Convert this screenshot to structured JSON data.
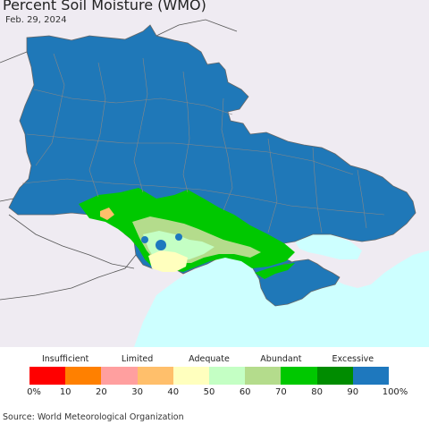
{
  "title": "Percent Soil Moisture (WMO)",
  "date": "Feb. 29, 2024",
  "source": "Source: World Meteorological Organization",
  "legend": {
    "categories": [
      {
        "label": "Insufficient",
        "value": 10
      },
      {
        "label": "Limited",
        "value": 30
      },
      {
        "label": "Adequate",
        "value": 50
      },
      {
        "label": "Abundant",
        "value": 70
      },
      {
        "label": "Excessive",
        "value": 90
      }
    ],
    "colors": [
      "#ff0000",
      "#ff8000",
      "#ff9f9f",
      "#ffbf6b",
      "#ffffbe",
      "#c4ffc4",
      "#b4dc8c",
      "#00c800",
      "#008c00",
      "#1e78be"
    ],
    "ticks": [
      "0%",
      "10",
      "20",
      "30",
      "40",
      "50",
      "60",
      "70",
      "80",
      "90",
      "100%"
    ]
  },
  "map": {
    "colors": {
      "sea": "#cdffff",
      "land_outside": "#efebf2",
      "country": "#1f78b8",
      "border": "#888888",
      "coast": "#666666"
    }
  }
}
